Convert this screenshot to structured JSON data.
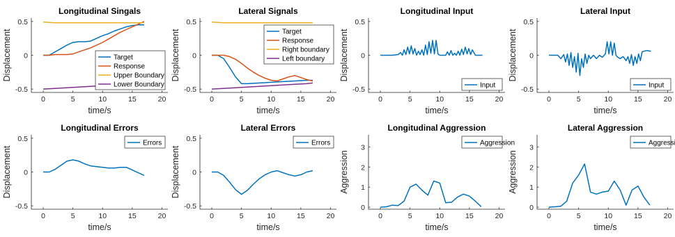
{
  "chart_data": [
    {
      "type": "line",
      "title": "Longitudinal Singals",
      "xlabel": "time/s",
      "ylabel": "Displacement",
      "xlim": [
        -2,
        21
      ],
      "ylim": [
        -0.55,
        0.55
      ],
      "xticks": [
        "0",
        "5",
        "10",
        "15",
        "20"
      ],
      "yticks": [
        "-0.5",
        "0",
        "0.5"
      ],
      "legend_position": "lower-right",
      "series": [
        {
          "name": "Target",
          "color": "#0072BD",
          "x": [
            0,
            1,
            2,
            3,
            4,
            5,
            6,
            7,
            8,
            9,
            10,
            11,
            12,
            13,
            14,
            15,
            16,
            17
          ],
          "y": [
            0,
            0,
            0.05,
            0.1,
            0.15,
            0.19,
            0.2,
            0.2,
            0.21,
            0.25,
            0.29,
            0.32,
            0.36,
            0.39,
            0.42,
            0.44,
            0.45,
            0.45
          ]
        },
        {
          "name": "Response",
          "color": "#D95319",
          "x": [
            0,
            1,
            2,
            3,
            4,
            5,
            6,
            7,
            8,
            9,
            10,
            11,
            12,
            13,
            14,
            15,
            16,
            17
          ],
          "y": [
            0,
            0,
            0.01,
            0.01,
            0.01,
            0.02,
            0.05,
            0.08,
            0.11,
            0.15,
            0.19,
            0.24,
            0.29,
            0.34,
            0.38,
            0.42,
            0.46,
            0.5
          ]
        },
        {
          "name": "Upper Boundary",
          "color": "#EDB120",
          "x": [
            0,
            2,
            4,
            6,
            8,
            10,
            12,
            14,
            16,
            17
          ],
          "y": [
            0.49,
            0.48,
            0.48,
            0.48,
            0.48,
            0.48,
            0.48,
            0.48,
            0.48,
            0.48
          ]
        },
        {
          "name": "Lower Boundary",
          "color": "#7E2F8E",
          "x": [
            0,
            2,
            4,
            6,
            8,
            10,
            12,
            14,
            16,
            17
          ],
          "y": [
            -0.5,
            -0.49,
            -0.48,
            -0.47,
            -0.46,
            -0.45,
            -0.44,
            -0.43,
            -0.42,
            -0.41
          ]
        }
      ]
    },
    {
      "type": "line",
      "title": "Lateral Signals",
      "xlabel": "time/s",
      "ylabel": "Displacement",
      "xlim": [
        -2,
        21
      ],
      "ylim": [
        -0.55,
        0.55
      ],
      "xticks": [
        "0",
        "5",
        "10",
        "15",
        "20"
      ],
      "yticks": [
        "-0.5",
        "0",
        "0.5"
      ],
      "legend_position": "right",
      "series": [
        {
          "name": "Target",
          "color": "#0072BD",
          "x": [
            0,
            1,
            2,
            3,
            4,
            5,
            6,
            8,
            10,
            12,
            14,
            16,
            17
          ],
          "y": [
            0,
            0,
            -0.05,
            -0.18,
            -0.32,
            -0.42,
            -0.42,
            -0.41,
            -0.4,
            -0.39,
            -0.38,
            -0.37,
            -0.37
          ]
        },
        {
          "name": "Response",
          "color": "#D95319",
          "x": [
            0,
            1,
            2,
            3,
            4,
            5,
            6,
            7,
            8,
            9,
            10,
            11,
            12,
            13,
            14,
            15,
            16,
            17
          ],
          "y": [
            0,
            0,
            0,
            -0.02,
            -0.06,
            -0.12,
            -0.19,
            -0.25,
            -0.3,
            -0.34,
            -0.37,
            -0.38,
            -0.35,
            -0.32,
            -0.3,
            -0.33,
            -0.36,
            -0.38
          ]
        },
        {
          "name": "Right boundary",
          "color": "#EDB120",
          "x": [
            0,
            2,
            4,
            6,
            8,
            10,
            12,
            14,
            16,
            17
          ],
          "y": [
            0.49,
            0.48,
            0.48,
            0.48,
            0.48,
            0.48,
            0.48,
            0.48,
            0.48,
            0.48
          ]
        },
        {
          "name": "Left boundary",
          "color": "#7E2F8E",
          "x": [
            0,
            2,
            4,
            6,
            8,
            10,
            12,
            14,
            16,
            17
          ],
          "y": [
            -0.5,
            -0.49,
            -0.48,
            -0.47,
            -0.46,
            -0.45,
            -0.44,
            -0.43,
            -0.42,
            -0.41
          ]
        }
      ]
    },
    {
      "type": "line",
      "title": "Longitudinal Input",
      "xlabel": "time/s",
      "ylabel": "Displacement",
      "xlim": [
        -2,
        21
      ],
      "ylim": [
        -0.55,
        0.55
      ],
      "xticks": [
        "0",
        "5",
        "10",
        "15",
        "20"
      ],
      "yticks": [
        "-0.5",
        "0",
        "0.5"
      ],
      "legend_position": "bottom-right",
      "series": [
        {
          "name": "Input",
          "color": "#0072BD",
          "x": [
            0,
            2,
            3,
            3.4,
            3.7,
            4.0,
            4.3,
            4.6,
            4.9,
            5.2,
            5.5,
            5.8,
            6.1,
            6.4,
            6.7,
            7.0,
            7.3,
            7.6,
            7.9,
            8.2,
            8.5,
            8.8,
            9.1,
            9.4,
            9.7,
            10.0,
            10.5,
            11,
            11.3,
            11.6,
            11.9,
            12.2,
            12.5,
            12.8,
            13.1,
            13.4,
            13.7,
            14.0,
            14.3,
            14.6,
            14.9,
            15.2,
            15.5,
            16,
            17.2
          ],
          "y": [
            0,
            0,
            0.01,
            0.04,
            0,
            0.08,
            0.01,
            0.12,
            0.02,
            0.14,
            0.02,
            0.1,
            0,
            0.06,
            0.01,
            0.08,
            0,
            0.15,
            0.01,
            0.2,
            0.03,
            0.22,
            0.02,
            0.22,
            0.02,
            0,
            0,
            0,
            0.05,
            0,
            0.07,
            0,
            0.03,
            0,
            0.06,
            0,
            0.09,
            0.01,
            0.12,
            0.02,
            0.1,
            0.01,
            0.08,
            0,
            0
          ]
        }
      ]
    },
    {
      "type": "line",
      "title": "Lateral Input",
      "xlabel": "time/s",
      "ylabel": "Displacement",
      "xlim": [
        -2,
        21
      ],
      "ylim": [
        -0.55,
        0.55
      ],
      "xticks": [
        "0",
        "5",
        "10",
        "15",
        "20"
      ],
      "yticks": [
        "-0.5",
        "0",
        "0.5"
      ],
      "legend_position": "bottom-right",
      "series": [
        {
          "name": "Input",
          "color": "#0072BD",
          "x": [
            0,
            1.5,
            2.0,
            2.5,
            2.8,
            3.1,
            3.4,
            3.7,
            4.0,
            4.3,
            4.6,
            4.9,
            5.2,
            5.5,
            5.8,
            6.1,
            6.4,
            6.7,
            7.0,
            7.5,
            8.0,
            8.5,
            9.0,
            9.5,
            9.8,
            10.1,
            10.4,
            10.7,
            11.0,
            11.3,
            11.6,
            12.0,
            12.5,
            13.0,
            13.3,
            13.6,
            13.9,
            14.2,
            14.5,
            14.8,
            15.1,
            15.4,
            15.7,
            16.0,
            16.5,
            17.2
          ],
          "y": [
            0,
            0,
            -0.05,
            0.01,
            -0.1,
            0.02,
            -0.15,
            0.04,
            -0.18,
            -0.02,
            -0.25,
            0.03,
            -0.3,
            -0.05,
            -0.18,
            0.02,
            -0.12,
            0,
            -0.05,
            0,
            -0.05,
            0,
            -0.03,
            0.02,
            0.2,
            0.02,
            0.2,
            0,
            0.18,
            0,
            -0.03,
            -0.05,
            -0.02,
            -0.08,
            -0.02,
            -0.12,
            0.01,
            -0.15,
            -0.02,
            -0.12,
            0.02,
            -0.08,
            0.05,
            0.06,
            0.07,
            0.06
          ]
        }
      ]
    },
    {
      "type": "line",
      "title": "Longitudinal Errors",
      "xlabel": "time/s",
      "ylabel": "Displacement",
      "xlim": [
        -2,
        21
      ],
      "ylim": [
        -0.55,
        0.55
      ],
      "xticks": [
        "0",
        "5",
        "10",
        "15",
        "20"
      ],
      "yticks": [
        "-0.5",
        "0",
        "0.5"
      ],
      "legend_position": "top-right",
      "series": [
        {
          "name": "Errors",
          "color": "#0072BD",
          "x": [
            0,
            1,
            2,
            3,
            4,
            5,
            6,
            7,
            8,
            9,
            10,
            11,
            12,
            13,
            14,
            15,
            16,
            17
          ],
          "y": [
            0,
            0,
            0.04,
            0.1,
            0.16,
            0.18,
            0.16,
            0.12,
            0.09,
            0.08,
            0.07,
            0.06,
            0.06,
            0.07,
            0.07,
            0.03,
            -0.01,
            -0.05
          ]
        }
      ]
    },
    {
      "type": "line",
      "title": "Lateral Errors",
      "xlabel": "time/s",
      "ylabel": "Displacement",
      "xlim": [
        -2,
        21
      ],
      "ylim": [
        -0.55,
        0.55
      ],
      "xticks": [
        "0",
        "5",
        "10",
        "15",
        "20"
      ],
      "yticks": [
        "-0.5",
        "0",
        "0.5"
      ],
      "legend_position": "top-right",
      "series": [
        {
          "name": "Errors",
          "color": "#0072BD",
          "x": [
            0,
            1,
            2,
            3,
            4,
            5,
            6,
            7,
            8,
            9,
            10,
            11,
            12,
            13,
            14,
            15,
            16,
            17
          ],
          "y": [
            0,
            0,
            -0.05,
            -0.15,
            -0.26,
            -0.33,
            -0.27,
            -0.18,
            -0.1,
            -0.04,
            0,
            0.02,
            -0.01,
            -0.04,
            -0.06,
            -0.04,
            0,
            0.02
          ]
        }
      ]
    },
    {
      "type": "line",
      "title": "Longitudinal Aggression",
      "xlabel": "time/s",
      "ylabel": "Aggression",
      "xlim": [
        -2,
        21
      ],
      "ylim": [
        -0.1,
        3.6
      ],
      "xticks": [
        "0",
        "5",
        "10",
        "15",
        "20"
      ],
      "yticks": [
        "0",
        "1",
        "2",
        "3"
      ],
      "legend_position": "top-right",
      "series": [
        {
          "name": "Aggression",
          "color": "#0072BD",
          "x": [
            0,
            1,
            2,
            3,
            4,
            5,
            6,
            7,
            8,
            9,
            10,
            11,
            12,
            13,
            14,
            15,
            16,
            17
          ],
          "y": [
            0,
            0.02,
            0.1,
            0.08,
            0.3,
            1.0,
            1.15,
            0.85,
            0.6,
            1.3,
            1.2,
            0.22,
            0.25,
            0.5,
            0.65,
            0.55,
            0.3,
            0.02
          ]
        }
      ]
    },
    {
      "type": "line",
      "title": "Lateral Aggression",
      "xlabel": "time/s",
      "ylabel": "Aggression",
      "xlim": [
        -2,
        21
      ],
      "ylim": [
        -0.1,
        3.6
      ],
      "xticks": [
        "0",
        "5",
        "10",
        "15",
        "20"
      ],
      "yticks": [
        "0",
        "1",
        "2",
        "3"
      ],
      "legend_position": "top-right",
      "series": [
        {
          "name": "Aggression",
          "color": "#0072BD",
          "x": [
            0,
            1,
            2,
            3,
            4,
            5,
            6,
            7,
            8,
            9,
            10,
            11,
            12,
            13,
            14,
            15,
            16,
            17
          ],
          "y": [
            0,
            0.02,
            0.05,
            0.3,
            1.2,
            1.6,
            2.15,
            0.75,
            0.65,
            0.75,
            0.8,
            1.3,
            0.85,
            0.1,
            0.85,
            1.05,
            0.5,
            0.1
          ]
        }
      ]
    }
  ]
}
